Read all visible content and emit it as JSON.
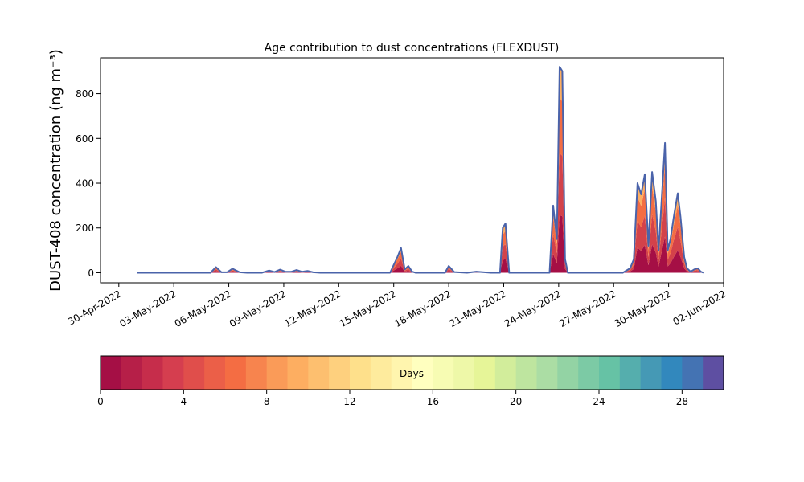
{
  "chart_data": [
    {
      "type": "area",
      "title": "Age contribution to dust concentrations (FLEXDUST)",
      "ylabel": "DUST-408 concentration (ng m⁻³)",
      "xlabel": "",
      "xlim": [
        "2022-04-29",
        "2022-06-02"
      ],
      "ylim": [
        -45,
        960
      ],
      "yticks": [
        0,
        200,
        400,
        600,
        800
      ],
      "xticks": [
        "30-Apr-2022",
        "03-May-2022",
        "06-May-2022",
        "09-May-2022",
        "12-May-2022",
        "15-May-2022",
        "18-May-2022",
        "21-May-2022",
        "24-May-2022",
        "27-May-2022",
        "30-May-2022",
        "02-Jun-2022"
      ],
      "x_date_format": "DD-Mon-YYYY",
      "grid": false,
      "stacked": true,
      "series": [
        {
          "color": "#a50f45",
          "stack_order": 1
        },
        {
          "color": "#d3424a",
          "stack_order": 2
        },
        {
          "color": "#f46d43",
          "stack_order": 3
        },
        {
          "color": "#fdae61",
          "stack_order": 4
        }
      ],
      "total_color": "#4a63aa",
      "total": {
        "x": [
          "2022-05-01",
          "2022-05-03",
          "2022-05-05",
          "2022-05-05.3",
          "2022-05-05.6",
          "2022-05-05.9",
          "2022-05-06.2",
          "2022-05-06.6",
          "2022-05-07",
          "2022-05-07.8",
          "2022-05-08.2",
          "2022-05-08.5",
          "2022-05-08.8",
          "2022-05-09.1",
          "2022-05-09.4",
          "2022-05-09.7",
          "2022-05-10",
          "2022-05-10.3",
          "2022-05-10.6",
          "2022-05-11",
          "2022-05-13",
          "2022-05-14.8",
          "2022-05-15.2",
          "2022-05-15.4",
          "2022-05-15.6",
          "2022-05-15.8",
          "2022-05-16",
          "2022-05-16.2",
          "2022-05-16.5",
          "2022-05-17",
          "2022-05-17.8",
          "2022-05-18",
          "2022-05-18.3",
          "2022-05-19",
          "2022-05-19.5",
          "2022-05-20.3",
          "2022-05-20.8",
          "2022-05-20.95",
          "2022-05-21.1",
          "2022-05-21.3",
          "2022-05-22",
          "2022-05-23.5",
          "2022-05-23.7",
          "2022-05-23.9",
          "2022-05-24.05",
          "2022-05-24.2",
          "2022-05-24.35",
          "2022-05-24.5",
          "2022-05-24.7",
          "2022-05-25",
          "2022-05-26",
          "2022-05-27.5",
          "2022-05-27.9",
          "2022-05-28.1",
          "2022-05-28.3",
          "2022-05-28.5",
          "2022-05-28.7",
          "2022-05-28.9",
          "2022-05-29.1",
          "2022-05-29.3",
          "2022-05-29.45",
          "2022-05-29.6",
          "2022-05-29.8",
          "2022-05-29.95",
          "2022-05-30.1",
          "2022-05-30.3",
          "2022-05-30.5",
          "2022-05-30.65",
          "2022-05-30.85",
          "2022-05-31",
          "2022-05-31.2",
          "2022-05-31.4",
          "2022-05-31.6",
          "2022-05-31.75",
          "2022-05-31.9"
        ],
        "values": [
          0,
          0,
          0,
          25,
          2,
          2,
          18,
          2,
          0,
          0,
          10,
          3,
          14,
          4,
          4,
          12,
          4,
          8,
          2,
          0,
          0,
          0,
          70,
          110,
          15,
          30,
          5,
          0,
          0,
          0,
          0,
          30,
          3,
          0,
          5,
          0,
          0,
          200,
          220,
          0,
          0,
          0,
          300,
          150,
          920,
          900,
          60,
          0,
          0,
          0,
          0,
          0,
          20,
          60,
          400,
          350,
          440,
          120,
          450,
          320,
          100,
          300,
          580,
          100,
          150,
          260,
          355,
          250,
          70,
          20,
          5,
          15,
          20,
          5,
          0
        ]
      },
      "colorbar": {
        "label": "Days",
        "range": [
          0,
          30
        ],
        "ticks": [
          0,
          4,
          8,
          12,
          16,
          20,
          24,
          28
        ],
        "colors": [
          "#a50f45",
          "#b61f48",
          "#c62d4b",
          "#d53e4f",
          "#e04e4b",
          "#eb5f48",
          "#f46d43",
          "#f7844e",
          "#fa9b58",
          "#fdae61",
          "#fdbf6f",
          "#fed07e",
          "#fee08b",
          "#feeb9d",
          "#fff5ae",
          "#ffffbf",
          "#f7fcb3",
          "#eef8a8",
          "#e6f598",
          "#d2ed9b",
          "#bee59f",
          "#abdda4",
          "#93d3a4",
          "#7ccaa5",
          "#66c2a5",
          "#55aead",
          "#4599b5",
          "#3288bd",
          "#4473b3",
          "#5e4fa2"
        ]
      }
    }
  ]
}
